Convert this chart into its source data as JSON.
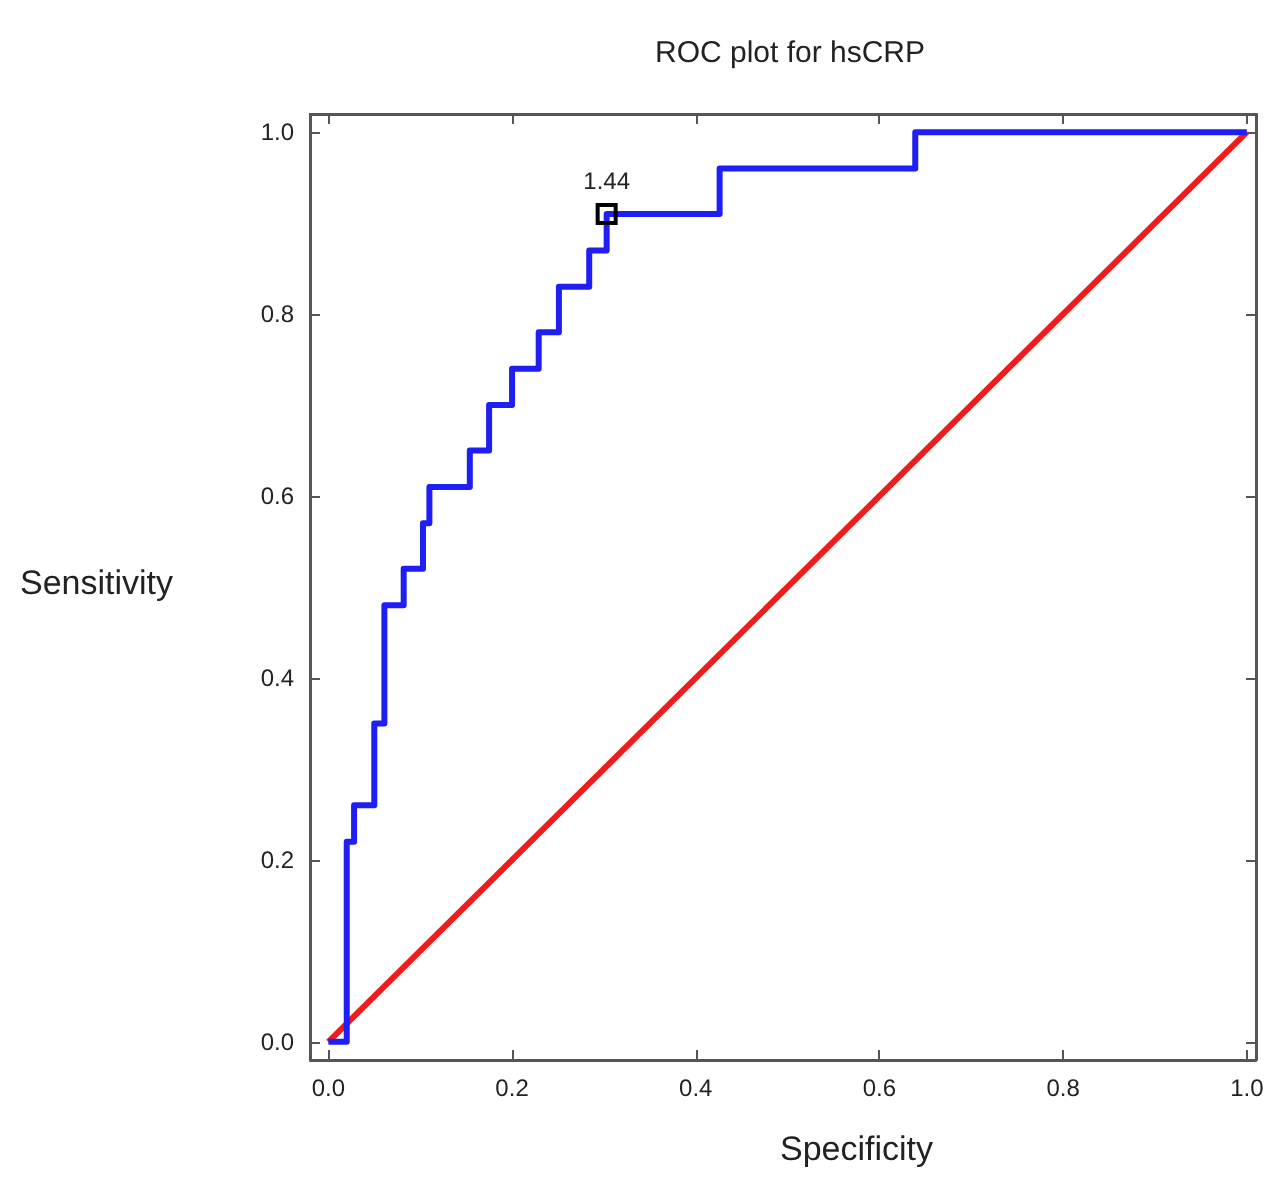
{
  "chart_data": {
    "type": "step",
    "title": "ROC plot for hsCRP",
    "xlabel": "Specificity",
    "ylabel": "Sensitivity",
    "series": [
      {
        "color": "#1f1ff5",
        "x": [
          0,
          0.02,
          0.028,
          0.05,
          0.061,
          0.082,
          0.103,
          0.11,
          0.154,
          0.175,
          0.2,
          0.229,
          0.251,
          0.284,
          0.303,
          0.426,
          0.639,
          1.0
        ],
        "values": [
          0,
          0.22,
          0.26,
          0.35,
          0.48,
          0.52,
          0.57,
          0.61,
          0.65,
          0.7,
          0.74,
          0.78,
          0.83,
          0.87,
          0.91,
          0.96,
          1.0,
          1.0
        ]
      },
      {
        "type": "line",
        "color": "#f01c1c",
        "x": [
          0,
          1
        ],
        "values": [
          0,
          1
        ]
      }
    ],
    "annotations": [
      {
        "text": "1.44",
        "x": 0.303,
        "y": 0.91
      }
    ],
    "xlim": [
      -0.02,
      1.01
    ],
    "ylim": [
      -0.02,
      1.02
    ],
    "xticks": [
      {
        "value": 0,
        "label": "0.0"
      },
      {
        "value": 0.2,
        "label": "0.2"
      },
      {
        "value": 0.4,
        "label": "0.4"
      },
      {
        "value": 0.6,
        "label": "0.6"
      },
      {
        "value": 0.8,
        "label": "0.8"
      },
      {
        "value": 1,
        "label": "1.0"
      }
    ],
    "yticks": [
      {
        "value": 0,
        "label": "0.0"
      },
      {
        "value": 0.2,
        "label": "0.2"
      },
      {
        "value": 0.4,
        "label": "0.4"
      },
      {
        "value": 0.6,
        "label": "0.6"
      },
      {
        "value": 0.8,
        "label": "0.8"
      },
      {
        "value": 1,
        "label": "1.0"
      }
    ],
    "marker": "none"
  }
}
